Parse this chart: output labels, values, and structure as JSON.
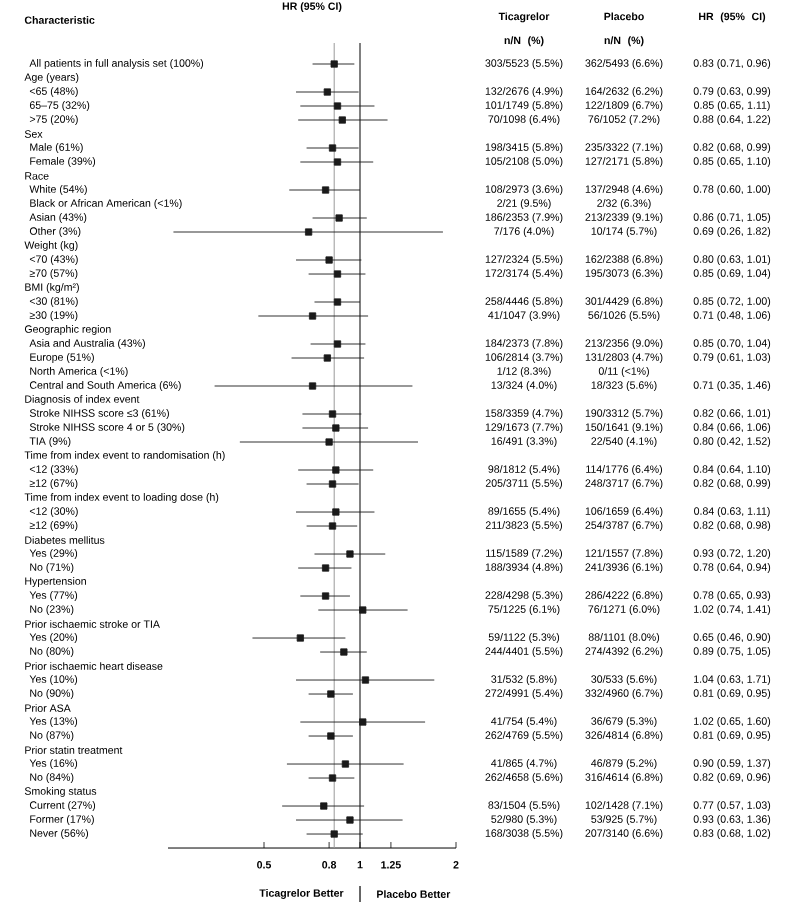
{
  "chart_data": {
    "type": "scatter",
    "orientation": "horizontal",
    "title": "HR (95% CI)",
    "ylabel": "Characteristic",
    "log": "x",
    "marker": "square",
    "color": "#1a1a1a",
    "xlim": [
      0.25,
      2
    ],
    "xticks": [
      0.5,
      0.8,
      1,
      1.25,
      2
    ],
    "categories": [
      "All patients in full analysis set (100%)",
      null,
      "<65 (48%)",
      "65–75 (32%)",
      ">75 (20%)",
      null,
      "Male (61%)",
      "Female (39%)",
      null,
      "White (54%)",
      "Black or African American (<1%)",
      "Asian (43%)",
      "Other (3%)",
      null,
      "<70 (43%)",
      "≥70 (57%)",
      null,
      "<30 (81%)",
      "≥30 (19%)",
      null,
      "Asia and Australia (43%)",
      "Europe (51%)",
      "North America (<1%)",
      "Central and South America (6%)",
      null,
      "Stroke NIHSS score ≤3 (61%)",
      "Stroke NIHSS score 4 or 5 (30%)",
      "TIA (9%)",
      null,
      "<12 (33%)",
      "≥12 (67%)",
      null,
      "<12 (30%)",
      "≥12 (69%)",
      null,
      "Yes (29%)",
      "No (71%)",
      null,
      "Yes (77%)",
      "No (23%)",
      null,
      "Yes (20%)",
      "No (80%)",
      null,
      "Yes (10%)",
      "No (90%)",
      null,
      "Yes (13%)",
      "No (87%)",
      null,
      "Yes (16%)",
      "No (84%)",
      null,
      "Current (27%)",
      "Former (17%)",
      "Never (56%)"
    ],
    "values": [
      0.83,
      null,
      0.79,
      0.85,
      0.88,
      null,
      0.82,
      0.85,
      null,
      0.78,
      null,
      0.86,
      0.69,
      null,
      0.8,
      0.85,
      null,
      0.85,
      0.71,
      null,
      0.85,
      0.79,
      null,
      0.71,
      null,
      0.82,
      0.84,
      0.8,
      null,
      0.84,
      0.82,
      null,
      0.84,
      0.82,
      null,
      0.93,
      0.78,
      null,
      0.78,
      1.02,
      null,
      0.65,
      0.89,
      null,
      1.04,
      0.81,
      null,
      1.02,
      0.81,
      null,
      0.9,
      0.82,
      null,
      0.77,
      0.93,
      0.83
    ],
    "errors": [
      [
        0.71,
        0.96
      ],
      null,
      [
        0.63,
        0.99
      ],
      [
        0.65,
        1.11
      ],
      [
        0.64,
        1.22
      ],
      null,
      [
        0.68,
        0.99
      ],
      [
        0.65,
        1.1
      ],
      null,
      [
        0.6,
        1.0
      ],
      null,
      [
        0.71,
        1.05
      ],
      [
        0.26,
        1.82
      ],
      null,
      [
        0.63,
        1.01
      ],
      [
        0.69,
        1.04
      ],
      null,
      [
        0.72,
        1.0
      ],
      [
        0.48,
        1.06
      ],
      null,
      [
        0.7,
        1.04
      ],
      [
        0.61,
        1.03
      ],
      null,
      [
        0.35,
        1.46
      ],
      null,
      [
        0.66,
        1.01
      ],
      [
        0.66,
        1.06
      ],
      [
        0.42,
        1.52
      ],
      null,
      [
        0.64,
        1.1
      ],
      [
        0.68,
        0.99
      ],
      null,
      [
        0.63,
        1.11
      ],
      [
        0.68,
        0.98
      ],
      null,
      [
        0.72,
        1.2
      ],
      [
        0.64,
        0.94
      ],
      null,
      [
        0.65,
        0.93
      ],
      [
        0.74,
        1.41
      ],
      null,
      [
        0.46,
        0.9
      ],
      [
        0.75,
        1.05
      ],
      null,
      [
        0.63,
        1.71
      ],
      [
        0.69,
        0.95
      ],
      null,
      [
        0.65,
        1.6
      ],
      [
        0.69,
        0.95
      ],
      null,
      [
        0.59,
        1.37
      ],
      [
        0.69,
        0.96
      ],
      null,
      [
        0.57,
        1.03
      ],
      [
        0.63,
        1.36
      ],
      [
        0.68,
        1.02
      ]
    ],
    "value_labels": [
      "0.83 (0.71, 0.96)",
      null,
      "0.79 (0.63, 0.99)",
      "0.85 (0.65, 1.11)",
      "0.88 (0.64, 1.22)",
      null,
      "0.82 (0.68, 0.99)",
      "0.85 (0.65, 1.10)",
      null,
      "0.78 (0.60, 1.00)",
      null,
      "0.86 (0.71, 1.05)",
      "0.69 (0.26, 1.82)",
      null,
      "0.80 (0.63, 1.01)",
      "0.85 (0.69, 1.04)",
      null,
      "0.85 (0.72, 1.00)",
      "0.71 (0.48, 1.06)",
      null,
      "0.85 (0.70, 1.04)",
      "0.79 (0.61, 1.03)",
      null,
      "0.71 (0.35, 1.46)",
      null,
      "0.82 (0.66, 1.01)",
      "0.84 (0.66, 1.06)",
      "0.80 (0.42, 1.52)",
      null,
      "0.84 (0.64, 1.10)",
      "0.82 (0.68, 0.99)",
      null,
      "0.84 (0.63, 1.11)",
      "0.82 (0.68, 0.98)",
      null,
      "0.93 (0.72, 1.20)",
      "0.78 (0.64, 0.94)",
      null,
      "0.78 (0.65, 0.93)",
      "1.02 (0.74, 1.41)",
      null,
      "0.65 (0.46, 0.90)",
      "0.89 (0.75, 1.05)",
      null,
      "1.04 (0.63, 1.71)",
      "0.81 (0.69, 0.95)",
      null,
      "1.02 (0.65, 1.60)",
      "0.81 (0.69, 0.95)",
      null,
      "0.90 (0.59, 1.37)",
      "0.82 (0.69, 0.96)",
      null,
      "0.77 (0.57, 1.03)",
      "0.93 (0.63, 1.36)",
      "0.83 (0.68, 1.02)"
    ],
    "ref_lines": [
      {
        "axis": "x",
        "value": 1,
        "color": "#000000"
      },
      {
        "axis": "x",
        "value": 0.83,
        "color": "#9a9a9a"
      }
    ],
    "annotations": [
      "Ticagrelor n/N (%)",
      "Placebo n/N (%)",
      "HR (95% CI)",
      "Ticagrelor Better",
      "Placebo Better",
      "Age (years)",
      "Sex",
      "Race",
      "Weight (kg)",
      "BMI (kg/m²)",
      "Geographic region",
      "Diagnosis of index event",
      "Time from index event to randomisation (h)",
      "Time from index event to loading dose (h)",
      "Diabetes mellitus",
      "Hypertension",
      "Prior ischaemic stroke or TIA",
      "Prior ischaemic heart disease",
      "Prior ASA",
      "Prior statin treatment",
      "Smoking status",
      "303/5523 (5.5%)",
      "362/5493 (6.6%)",
      "132/2676 (4.9%)",
      "164/2632 (6.2%)",
      "101/1749 (5.8%)",
      "122/1809 (6.7%)",
      "70/1098 (6.4%)",
      "76/1052 (7.2%)",
      "198/3415 (5.8%)",
      "235/3322 (7.1%)",
      "105/2108 (5.0%)",
      "127/2171 (5.8%)",
      "108/2973 (3.6%)",
      "137/2948 (4.6%)",
      "2/21 (9.5%)",
      "2/32 (6.3%)",
      "186/2353 (7.9%)",
      "213/2339 (9.1%)",
      "7/176 (4.0%)",
      "10/174 (5.7%)",
      "127/2324 (5.5%)",
      "162/2388 (6.8%)",
      "172/3174 (5.4%)",
      "195/3073 (6.3%)",
      "258/4446 (5.8%)",
      "301/4429 (6.8%)",
      "41/1047 (3.9%)",
      "56/1026 (5.5%)",
      "184/2373 (7.8%)",
      "213/2356 (9.0%)",
      "106/2814 (3.7%)",
      "131/2803 (4.7%)",
      "1/12 (8.3%)",
      "0/11 (<1%)",
      "13/324 (4.0%)",
      "18/323 (5.6%)",
      "158/3359 (4.7%)",
      "190/3312 (5.7%)",
      "129/1673 (7.7%)",
      "150/1641 (9.1%)",
      "16/491 (3.3%)",
      "22/540 (4.1%)",
      "98/1812 (5.4%)",
      "114/1776 (6.4%)",
      "205/3711 (5.5%)",
      "248/3717 (6.7%)",
      "89/1655 (5.4%)",
      "106/1659 (6.4%)",
      "211/3823 (5.5%)",
      "254/3787 (6.7%)",
      "115/1589 (7.2%)",
      "121/1557 (7.8%)",
      "188/3934 (4.8%)",
      "241/3936 (6.1%)",
      "228/4298 (5.3%)",
      "286/4222 (6.8%)",
      "75/1225 (6.1%)",
      "76/1271 (6.0%)",
      "59/1122 (5.3%)",
      "88/1101 (8.0%)",
      "244/4401 (5.5%)",
      "274/4392 (6.2%)",
      "31/532 (5.8%)",
      "30/533 (5.6%)",
      "272/4991 (5.4%)",
      "332/4960 (6.7%)",
      "41/754 (5.4%)",
      "36/679 (5.3%)",
      "262/4769 (5.5%)",
      "326/4814 (6.8%)",
      "41/865 (4.7%)",
      "46/879 (5.2%)",
      "262/4658 (5.6%)",
      "316/4614 (6.8%)",
      "83/1504 (5.5%)",
      "102/1428 (7.1%)",
      "52/980 (5.3%)",
      "53/925 (5.7%)",
      "168/3038 (5.5%)",
      "207/3140 (6.6%)"
    ]
  }
}
